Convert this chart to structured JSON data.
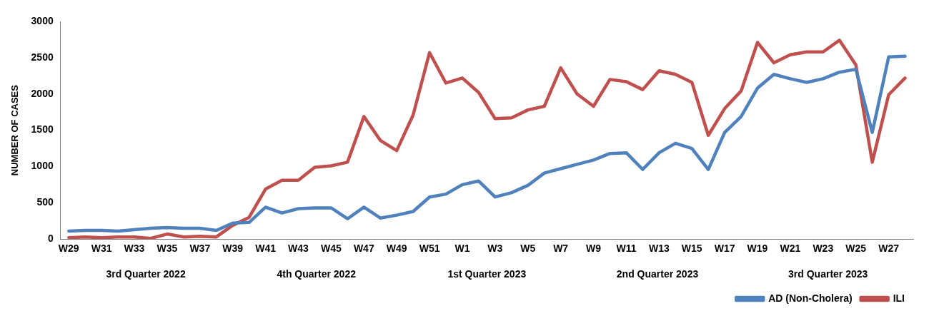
{
  "chart_data": {
    "type": "line",
    "ylabel": "NUMBER OF CASES",
    "categories": [
      "W29",
      null,
      "W31",
      null,
      "W33",
      null,
      "W35",
      null,
      "W37",
      null,
      "W39",
      null,
      "W41",
      null,
      "W43",
      null,
      "W45",
      null,
      "W47",
      null,
      "W49",
      null,
      "W51",
      null,
      "W1",
      null,
      "W3",
      null,
      "W5",
      null,
      "W7",
      null,
      "W9",
      null,
      "W11",
      null,
      "W13",
      null,
      "W15",
      null,
      "W17",
      null,
      "W19",
      null,
      "W21",
      null,
      "W23",
      null,
      "W25",
      null,
      "W27",
      null
    ],
    "series": [
      {
        "name": "AD (Non-Cholera)",
        "color": "#4f81bd",
        "values": [
          110,
          120,
          120,
          110,
          130,
          150,
          160,
          150,
          150,
          120,
          220,
          230,
          440,
          360,
          420,
          430,
          430,
          280,
          440,
          290,
          330,
          380,
          580,
          620,
          750,
          800,
          580,
          640,
          740,
          910,
          970,
          1030,
          1090,
          1180,
          1190,
          960,
          1190,
          1320,
          1250,
          960,
          1470,
          1690,
          2080,
          2270,
          2210,
          2160,
          2210,
          2300,
          2340,
          1470,
          2510,
          2520
        ]
      },
      {
        "name": "ILI",
        "color": "#c0504d",
        "values": [
          20,
          30,
          20,
          30,
          30,
          10,
          70,
          30,
          40,
          30,
          190,
          300,
          690,
          810,
          810,
          990,
          1010,
          1060,
          1690,
          1360,
          1220,
          1710,
          2570,
          2150,
          2220,
          2020,
          1660,
          1670,
          1780,
          1830,
          2360,
          2000,
          1830,
          2200,
          2170,
          2060,
          2320,
          2270,
          2160,
          1430,
          1800,
          2040,
          2710,
          2430,
          2540,
          2580,
          2580,
          2740,
          2400,
          1060,
          1990,
          2220
        ]
      }
    ],
    "ylim": [
      0,
      3000
    ],
    "yticks": [
      0,
      500,
      1000,
      1500,
      2000,
      2500,
      3000
    ],
    "annotations": [
      "3rd Quarter 2022",
      "4th Quarter 2022",
      "1st Quarter 2023",
      "2nd Quarter 2023",
      "3rd Quarter 2023"
    ],
    "grid": false,
    "marker": "none",
    "line_style": "solid",
    "legend": "bottom right"
  }
}
